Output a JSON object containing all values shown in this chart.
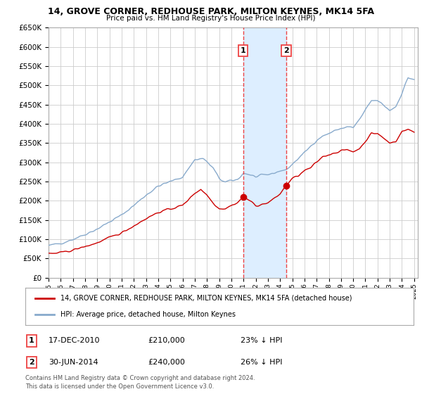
{
  "title": "14, GROVE CORNER, REDHOUSE PARK, MILTON KEYNES, MK14 5FA",
  "subtitle": "Price paid vs. HM Land Registry's House Price Index (HPI)",
  "legend_line1": "14, GROVE CORNER, REDHOUSE PARK, MILTON KEYNES, MK14 5FA (detached house)",
  "legend_line2": "HPI: Average price, detached house, Milton Keynes",
  "sale1_date": "17-DEC-2010",
  "sale1_price": 210000,
  "sale1_pct": "23%",
  "sale1_x": 2010.96,
  "sale2_date": "30-JUN-2014",
  "sale2_price": 240000,
  "sale2_pct": "26%",
  "sale2_x": 2014.5,
  "footnote1": "Contains HM Land Registry data © Crown copyright and database right 2024.",
  "footnote2": "This data is licensed under the Open Government Licence v3.0.",
  "ylim": [
    0,
    650000
  ],
  "ytick_step": 50000,
  "xlim_left": 1995,
  "xlim_right": 2025.3,
  "red_line_color": "#cc0000",
  "blue_line_color": "#88aacc",
  "shade_color": "#ddeeff",
  "vline_color": "#ee4444",
  "background_color": "#ffffff",
  "grid_color": "#cccccc"
}
